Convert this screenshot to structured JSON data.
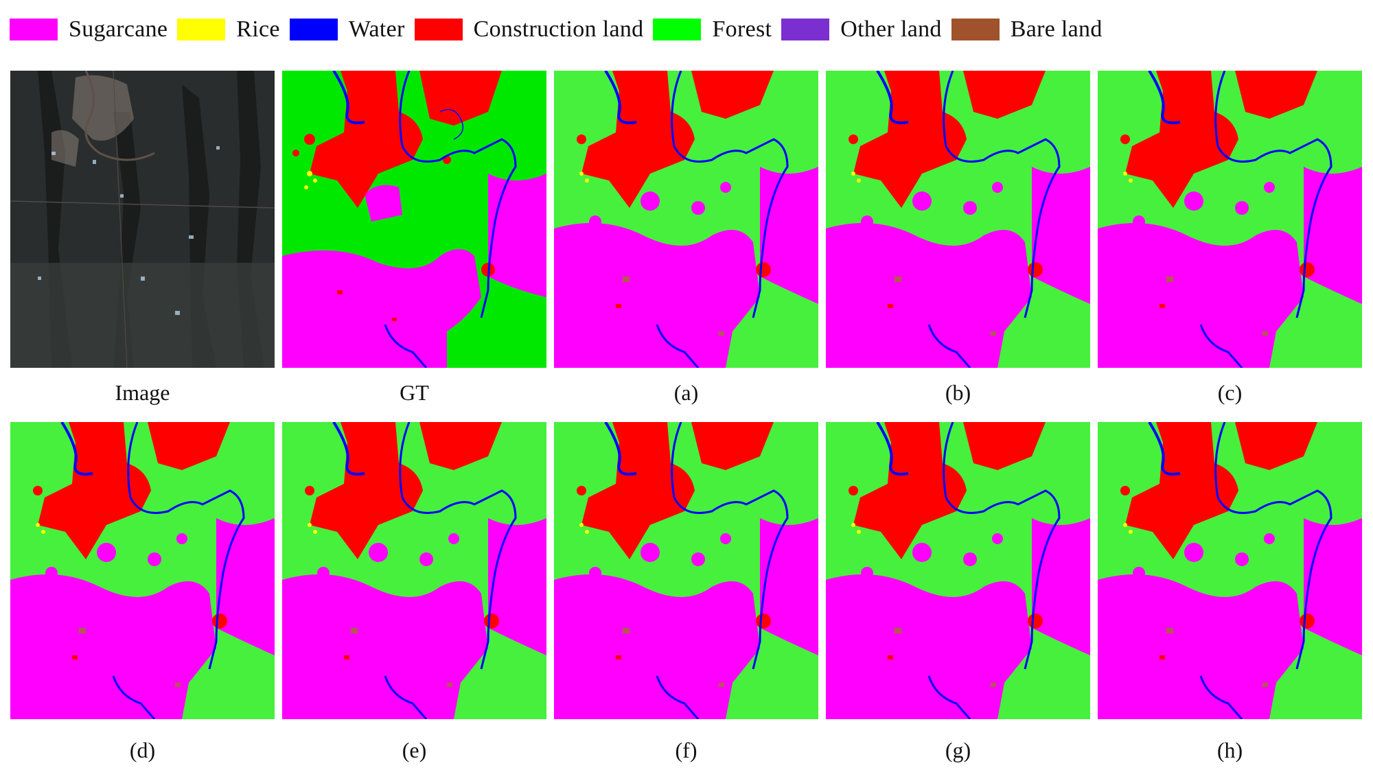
{
  "legend": {
    "items": [
      {
        "label": "Sugarcane",
        "color": "#ff00ff"
      },
      {
        "label": "Rice",
        "color": "#ffff00"
      },
      {
        "label": "Water",
        "color": "#0000ff"
      },
      {
        "label": "Construction land",
        "color": "#ff0000"
      },
      {
        "label": "Forest",
        "color": "#00ff00"
      },
      {
        "label": "Other land",
        "color": "#7b2fd0"
      },
      {
        "label": "Bare land",
        "color": "#a0522d"
      }
    ]
  },
  "panels": {
    "image": "Image",
    "gt": "GT",
    "a": "(a)",
    "b": "(b)",
    "c": "(c)",
    "d": "(d)",
    "e": "(e)",
    "f": "(f)",
    "g": "(g)",
    "h": "(h)"
  },
  "map_colors": {
    "forest_gt": "#00e800",
    "forest_pred": "#46f03c",
    "sugarcane": "#ff00ff",
    "construction": "#ff0000",
    "water": "#0000ff",
    "rice": "#ffff00",
    "bare": "#b05a50",
    "satellite_base": "#2a2d2e"
  }
}
